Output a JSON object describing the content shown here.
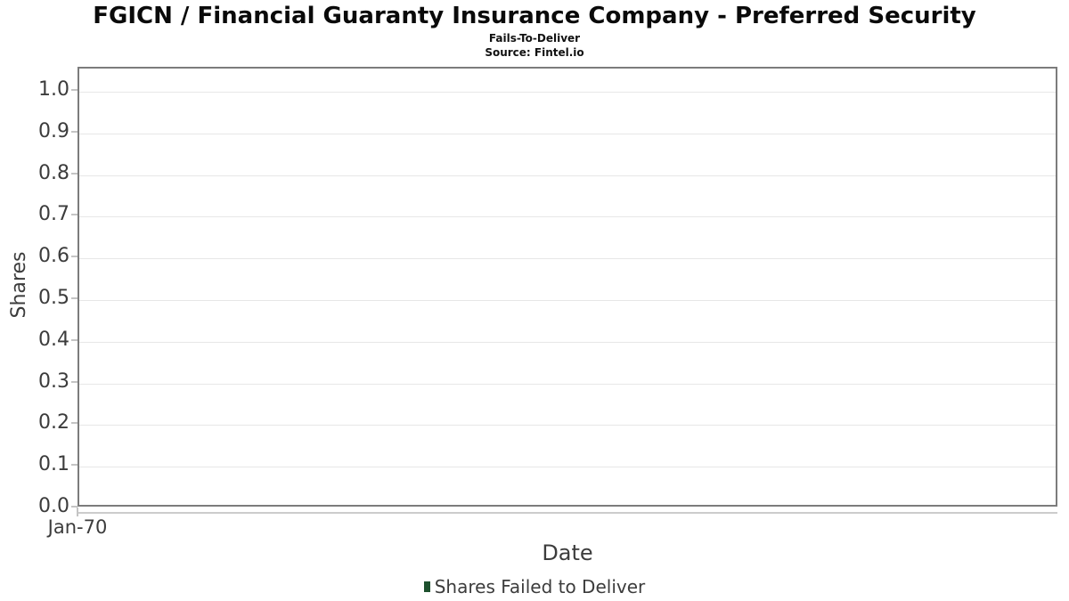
{
  "header": {
    "title": "FGICN / Financial Guaranty Insurance Company - Preferred Security",
    "subtitle": "Fails-To-Deliver",
    "source_note": "Source: Fintel.io"
  },
  "chart_data": {
    "type": "bar",
    "title": "FGICN / Financial Guaranty Insurance Company - Preferred Security",
    "subtitle": "Fails-To-Deliver",
    "source_note": "Source: Fintel.io",
    "xlabel": "Date",
    "ylabel": "Shares",
    "x_tick_labels": [
      "Jan-70"
    ],
    "y_ticks": [
      {
        "value": 0.0,
        "label": "0.0"
      },
      {
        "value": 0.1,
        "label": "0.1"
      },
      {
        "value": 0.2,
        "label": "0.2"
      },
      {
        "value": 0.3,
        "label": "0.3"
      },
      {
        "value": 0.4,
        "label": "0.4"
      },
      {
        "value": 0.5,
        "label": "0.5"
      },
      {
        "value": 0.6,
        "label": "0.6"
      },
      {
        "value": 0.7,
        "label": "0.7"
      },
      {
        "value": 0.8,
        "label": "0.8"
      },
      {
        "value": 0.9,
        "label": "0.9"
      },
      {
        "value": 1.0,
        "label": "1.0"
      }
    ],
    "ylim": [
      0.0,
      1.055
    ],
    "grid": true,
    "legend_position": "bottom",
    "series": [
      {
        "name": "Shares Failed to Deliver",
        "color": "#1e512e",
        "values": []
      }
    ]
  },
  "legend": {
    "items": [
      {
        "label": "Shares Failed to Deliver",
        "color": "#1e512e"
      }
    ]
  },
  "colors": {
    "series_green": "#1e512e",
    "plot_border": "#7c7c7c",
    "gridline": "#e7e7e7",
    "tick": "#c4c4c4",
    "axis_line": "#cccccc",
    "axis_text": "#3c3c3c",
    "title_text": "#0a0a0a"
  }
}
